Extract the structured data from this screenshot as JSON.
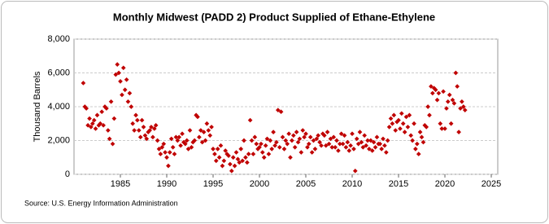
{
  "chart_data": {
    "type": "scatter",
    "title": "Monthly Midwest (PADD 2) Product Supplied of Ethane-Ethylene",
    "y_label": "Thousand Barrels",
    "source": "Source: U.S. Energy Information Administration",
    "color": "#c00000",
    "grid": true,
    "xlim": [
      1980,
      2025.7
    ],
    "ylim": [
      0,
      8000
    ],
    "xticks": [
      1985,
      1990,
      1995,
      2000,
      2005,
      2010,
      2015,
      2020,
      2025
    ],
    "yticks": [
      0,
      {
        "value": 2000,
        "label": "2,000"
      },
      {
        "value": 4000,
        "label": "4,000"
      },
      {
        "value": 6000,
        "label": "6,000"
      },
      {
        "value": 8000,
        "label": "8,000"
      }
    ],
    "x": [
      1981,
      1981.17,
      1981.33,
      1981.5,
      1981.67,
      1981.83,
      1982,
      1982.17,
      1982.33,
      1982.5,
      1982.67,
      1982.83,
      1983,
      1983.17,
      1983.33,
      1983.5,
      1983.67,
      1983.83,
      1984,
      1984.17,
      1984.33,
      1984.5,
      1984.67,
      1984.83,
      1985,
      1985.17,
      1985.33,
      1985.5,
      1985.67,
      1985.83,
      1986,
      1986.17,
      1986.33,
      1986.5,
      1986.67,
      1986.83,
      1987,
      1987.17,
      1987.33,
      1987.5,
      1987.67,
      1987.83,
      1988,
      1988.17,
      1988.33,
      1988.5,
      1988.67,
      1988.83,
      1989,
      1989.17,
      1989.33,
      1989.5,
      1989.67,
      1989.83,
      1990,
      1990.17,
      1990.33,
      1990.5,
      1990.67,
      1990.83,
      1991,
      1991.17,
      1991.33,
      1991.5,
      1991.67,
      1991.83,
      1992,
      1992.17,
      1992.33,
      1992.5,
      1992.67,
      1992.83,
      1993,
      1993.17,
      1993.33,
      1993.5,
      1993.67,
      1993.83,
      1994,
      1994.17,
      1994.33,
      1994.5,
      1994.67,
      1994.83,
      1995,
      1995.17,
      1995.33,
      1995.5,
      1995.67,
      1995.83,
      1996,
      1996.17,
      1996.33,
      1996.5,
      1996.67,
      1996.83,
      1997,
      1997.17,
      1997.33,
      1997.5,
      1997.67,
      1997.83,
      1998,
      1998.17,
      1998.33,
      1998.5,
      1998.67,
      1998.83,
      1999,
      1999.17,
      1999.33,
      1999.5,
      1999.67,
      1999.83,
      2000,
      2000.17,
      2000.33,
      2000.5,
      2000.67,
      2000.83,
      2001,
      2001.17,
      2001.33,
      2001.5,
      2001.67,
      2001.83,
      2002,
      2002.17,
      2002.33,
      2002.5,
      2002.67,
      2002.83,
      2003,
      2003.17,
      2003.33,
      2003.5,
      2003.67,
      2003.83,
      2004,
      2004.17,
      2004.33,
      2004.5,
      2004.67,
      2004.83,
      2005,
      2005.17,
      2005.33,
      2005.5,
      2005.67,
      2005.83,
      2006,
      2006.17,
      2006.33,
      2006.5,
      2006.67,
      2006.83,
      2007,
      2007.17,
      2007.33,
      2007.5,
      2007.67,
      2007.83,
      2008,
      2008.17,
      2008.33,
      2008.5,
      2008.67,
      2008.83,
      2009,
      2009.17,
      2009.33,
      2009.5,
      2009.67,
      2009.83,
      2010,
      2010.17,
      2010.33,
      2010.5,
      2010.67,
      2010.83,
      2011,
      2011.17,
      2011.33,
      2011.5,
      2011.67,
      2011.83,
      2012,
      2012.17,
      2012.33,
      2012.5,
      2012.67,
      2012.83,
      2013,
      2013.17,
      2013.33,
      2013.5,
      2013.67,
      2013.83,
      2014,
      2014.17,
      2014.33,
      2014.5,
      2014.67,
      2014.83,
      2015,
      2015.17,
      2015.33,
      2015.5,
      2015.67,
      2015.83,
      2016,
      2016.17,
      2016.33,
      2016.5,
      2016.67,
      2016.83,
      2017,
      2017.17,
      2017.33,
      2017.5,
      2017.67,
      2017.83,
      2018,
      2018.17,
      2018.33,
      2018.5,
      2018.67,
      2018.83,
      2019,
      2019.17,
      2019.33,
      2019.5,
      2019.67,
      2019.83,
      2020,
      2020.17,
      2020.33,
      2020.5,
      2020.67,
      2020.83,
      2021,
      2021.17,
      2021.33,
      2021.5,
      2021.67,
      2021.83,
      2022,
      2022.17
    ],
    "values": [
      5400,
      4000,
      3900,
      2900,
      3300,
      2800,
      3000,
      3200,
      2700,
      3500,
      2900,
      3000,
      3700,
      2900,
      4000,
      3900,
      2600,
      2100,
      4300,
      1800,
      3300,
      5900,
      6500,
      6000,
      5500,
      4700,
      6300,
      5000,
      5600,
      4300,
      4800,
      4000,
      3000,
      2600,
      3500,
      3200,
      2600,
      2200,
      3200,
      2800,
      2300,
      2100,
      2500,
      2600,
      2800,
      2200,
      2700,
      2900,
      2000,
      1500,
      1200,
      1600,
      1800,
      1300,
      1000,
      500,
      1300,
      2100,
      1600,
      1200,
      2200,
      2000,
      2200,
      1700,
      2400,
      1900,
      1800,
      2000,
      1500,
      2600,
      1600,
      1900,
      2000,
      3500,
      3400,
      2200,
      2600,
      1900,
      2500,
      2000,
      3000,
      2600,
      2300,
      2800,
      1500,
      1200,
      800,
      1500,
      1000,
      1700,
      500,
      800,
      1400,
      1200,
      1100,
      600,
      200,
      1000,
      500,
      1300,
      900,
      700,
      1500,
      800,
      2000,
      1000,
      700,
      1200,
      3200,
      2000,
      1200,
      2200,
      1800,
      1500,
      1600,
      1800,
      1300,
      1000,
      1700,
      2100,
      1200,
      2000,
      1500,
      2500,
      1700,
      1900,
      3800,
      1600,
      3700,
      2200,
      1500,
      2000,
      1800,
      2400,
      1000,
      2000,
      2300,
      1600,
      2500,
      1900,
      2100,
      1300,
      2600,
      2200,
      2400,
      1600,
      1800,
      2200,
      1300,
      2000,
      1500,
      2100,
      2300,
      1900,
      1700,
      2400,
      2300,
      1700,
      2500,
      1800,
      2100,
      1600,
      2200,
      1600,
      2000,
      1400,
      1800,
      2400,
      1800,
      2300,
      1600,
      1900,
      1400,
      1700,
      2400,
      1500,
      200,
      2100,
      1800,
      2500,
      1900,
      1600,
      2300,
      1700,
      2000,
      1500,
      2000,
      1400,
      1900,
      1600,
      2200,
      1800,
      1800,
      1500,
      2100,
      1700,
      1300,
      2000,
      2800,
      3300,
      3000,
      3500,
      2600,
      3100,
      3200,
      2700,
      3600,
      3000,
      2500,
      3400,
      2800,
      3500,
      2300,
      2000,
      3000,
      1500,
      1800,
      1200,
      2500,
      2200,
      1900,
      2900,
      2800,
      4000,
      3500,
      5200,
      4800,
      5100,
      5000,
      4400,
      4800,
      3000,
      2700,
      4900,
      2700,
      3900,
      4300,
      4700,
      3000,
      4400,
      4200,
      6000,
      5200,
      2500,
      3900,
      4300,
      4000,
      3800
    ]
  }
}
